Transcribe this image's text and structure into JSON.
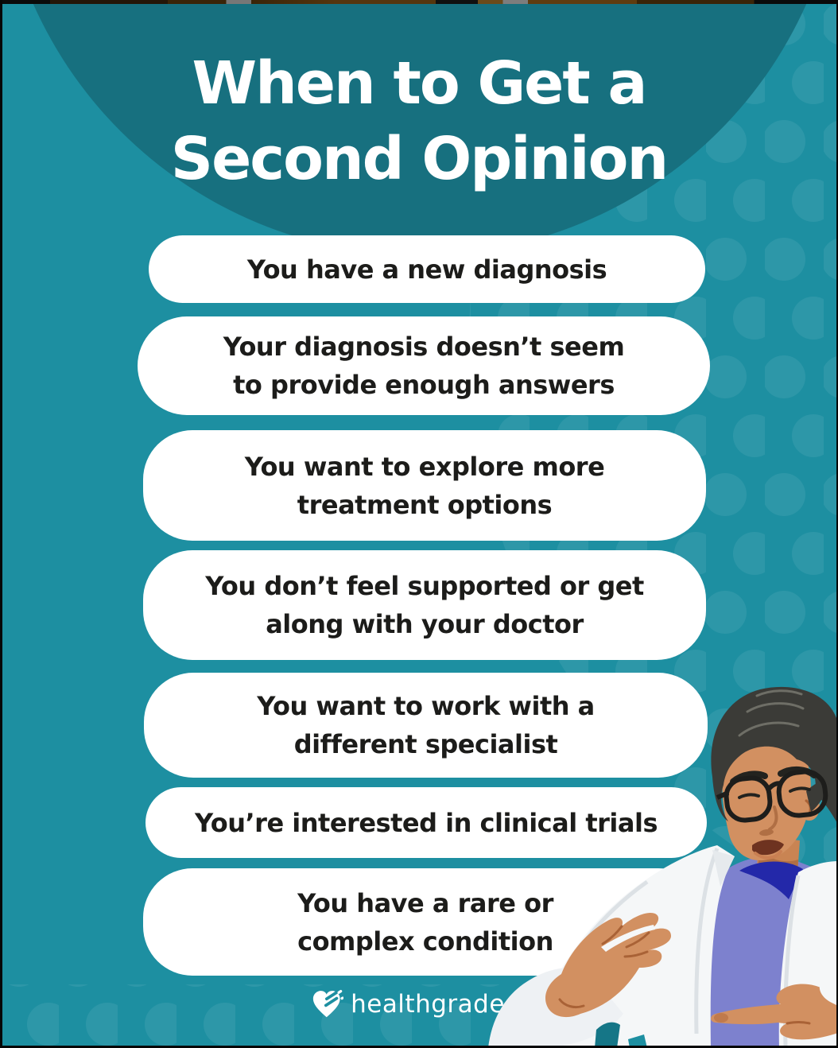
{
  "title": {
    "lines": [
      "When to Get a",
      "Second Opinion"
    ]
  },
  "pills": [
    {
      "lines": [
        "You have a new diagnosis"
      ]
    },
    {
      "lines": [
        "Your diagnosis doesn’t seem",
        "to provide enough answers"
      ]
    },
    {
      "lines": [
        "You want to explore more",
        "treatment options"
      ]
    },
    {
      "lines": [
        "You don’t feel supported or get",
        "along with your doctor"
      ]
    },
    {
      "lines": [
        "You want to work with a",
        "different specialist"
      ]
    },
    {
      "lines": [
        "You’re interested in clinical trials"
      ]
    },
    {
      "lines": [
        "You have a rare or",
        "complex condition"
      ]
    }
  ],
  "footer": {
    "brand": "healthgrades."
  },
  "illustration": {
    "name": "doctor-talking-illustration"
  },
  "colors": {
    "background": "#1D8FA1",
    "header_circle": "#17707F",
    "pill_bg": "#FFFFFF",
    "pill_text": "#1C1C1A",
    "title_text": "#FFFFFF",
    "dots": "rgba(255,255,255,0.07)",
    "skin": "#D29061",
    "skin_shadow": "#A96236",
    "hair": "#3B3B37",
    "shirt": "#7D81CE",
    "collar": "#2328A9",
    "coat": "#F5F7F8",
    "teal_accent": "#157687"
  }
}
